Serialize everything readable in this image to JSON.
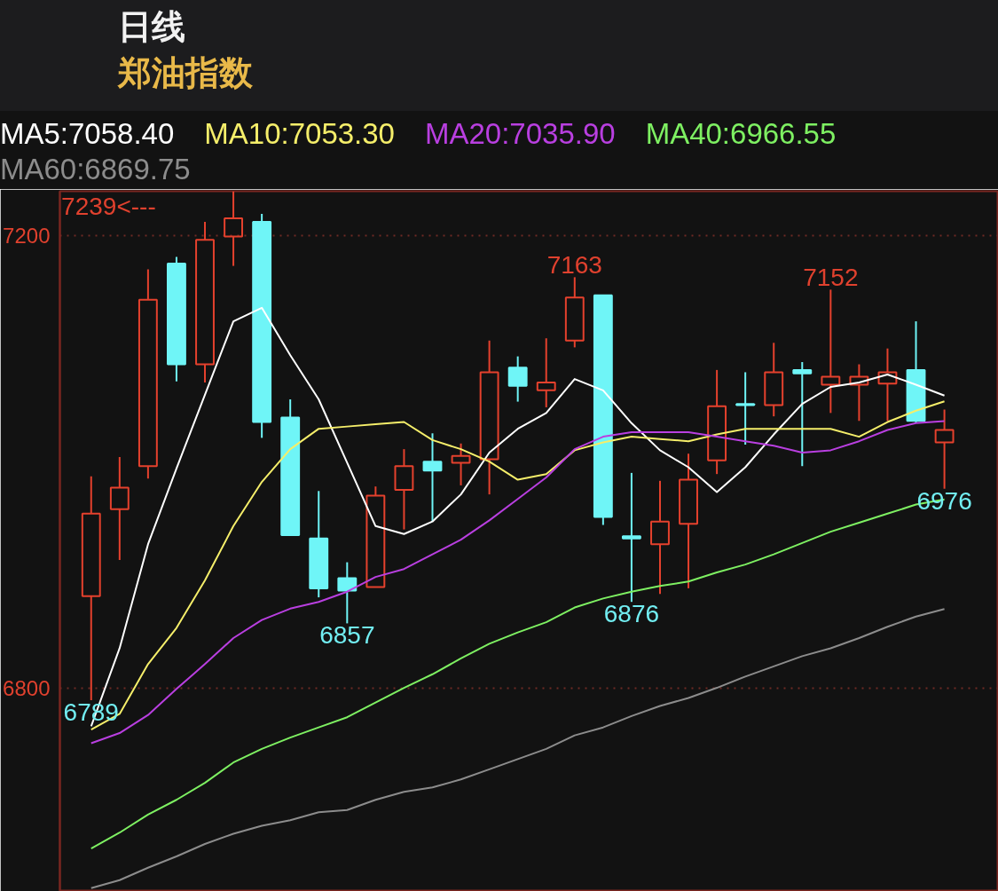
{
  "chart_data": {
    "type": "candlestick",
    "title": "日线",
    "subtitle": "郑油指数",
    "categories": [
      null,
      null,
      null,
      null,
      null,
      null,
      null,
      null,
      null,
      null,
      null,
      null,
      null,
      null,
      null,
      null,
      null,
      null,
      null,
      null,
      null,
      null,
      null,
      null,
      null,
      null,
      null,
      null,
      null,
      null,
      null
    ],
    "ohlc": [
      [
        6881,
        6987,
        6789,
        6954
      ],
      [
        6958,
        7004,
        6913,
        6977
      ],
      [
        6996,
        7170,
        6985,
        7143
      ],
      [
        7175,
        7181,
        7071,
        7086
      ],
      [
        7086,
        7212,
        7070,
        7196
      ],
      [
        7199,
        7239,
        7173,
        7215
      ],
      [
        7212,
        7219,
        7021,
        7035
      ],
      [
        7039,
        7055,
        6935,
        6935
      ],
      [
        6932,
        6974,
        6880,
        6888
      ],
      [
        6897,
        6911,
        6857,
        6886
      ],
      [
        6889,
        6978,
        6889,
        6970
      ],
      [
        6975,
        7011,
        6940,
        6996
      ],
      [
        7000,
        7025,
        6947,
        6992
      ],
      [
        6999,
        7016,
        6979,
        7005
      ],
      [
        7002,
        7107,
        6971,
        7079
      ],
      [
        7083,
        7093,
        7053,
        7067
      ],
      [
        7063,
        7109,
        7048,
        7070
      ],
      [
        7107,
        7163,
        7101,
        7145
      ],
      [
        7147,
        7147,
        6944,
        6951
      ],
      [
        6934,
        6990,
        6876,
        6932
      ],
      [
        6927,
        6983,
        6883,
        6947
      ],
      [
        6945,
        7007,
        6888,
        6984
      ],
      [
        7001,
        7081,
        6989,
        7049
      ],
      [
        7051,
        7079,
        7015,
        7050
      ],
      [
        7050,
        7105,
        7040,
        7079
      ],
      [
        7081,
        7088,
        6996,
        7078
      ],
      [
        7068,
        7152,
        7043,
        7075
      ],
      [
        7068,
        7086,
        7036,
        7075
      ],
      [
        7069,
        7100,
        7036,
        7079
      ],
      [
        7081,
        7124,
        7034,
        7036
      ],
      [
        7017,
        7046,
        6976,
        7028
      ]
    ],
    "colors": [
      "#e5412d",
      "#e5412d",
      "#e5412d",
      "#6ff5f7",
      "#e5412d",
      "#e5412d",
      "#6ff5f7",
      "#6ff5f7",
      "#6ff5f7",
      "#6ff5f7",
      "#e5412d",
      "#e5412d",
      "#6ff5f7",
      "#e5412d",
      "#e5412d",
      "#6ff5f7",
      "#e5412d",
      "#e5412d",
      "#6ff5f7",
      "#6ff5f7",
      "#e5412d",
      "#e5412d",
      "#e5412d",
      "#6ff5f7",
      "#e5412d",
      "#6ff5f7",
      "#e5412d",
      "#e5412d",
      "#e5412d",
      "#6ff5f7",
      "#e5412d"
    ],
    "series": [
      {
        "type": "line",
        "name": "MA5:7058.40",
        "color": "#ffffff",
        "values": [
          6766,
          6835,
          6927,
          6994,
          7059,
          7124,
          7136,
          7094,
          7055,
          6999,
          6943,
          6936,
          6947,
          6971,
          7008,
          7029,
          7043,
          7073,
          7063,
          7034,
          7010,
          6995,
          6973,
          6995,
          7024,
          7051,
          7066,
          7070,
          7077,
          7068,
          7058.4
        ]
      },
      {
        "type": "line",
        "name": "MA10:7053.30",
        "color": "#f5ee6a",
        "values": [
          6763,
          6777,
          6821,
          6853,
          6895,
          6943,
          6982,
          7011,
          7029,
          7031,
          7033,
          7035,
          7019,
          7011,
          7000,
          6984,
          6989,
          7010,
          7017,
          7022,
          7020,
          7018,
          7024,
          7029,
          7029,
          7029,
          7029,
          7022,
          7035,
          7045,
          7053.3
        ]
      },
      {
        "type": "line",
        "name": "MA20:7035.90",
        "color": "#b93fe0",
        "values": [
          6751,
          6760,
          6776,
          6799,
          6821,
          6844,
          6860,
          6870,
          6876,
          6885,
          6898,
          6905,
          6918,
          6931,
          6948,
          6967,
          6986,
          7011,
          7022,
          7026,
          7026,
          7026,
          7022,
          7018,
          7014,
          7008,
          7010,
          7018,
          7028,
          7034,
          7035.9
        ]
      },
      {
        "type": "line",
        "name": "MA40:6966.55",
        "color": "#7ef062",
        "values": [
          6658,
          6672,
          6688,
          6701,
          6716,
          6734,
          6746,
          6756,
          6765,
          6774,
          6787,
          6800,
          6812,
          6826,
          6839,
          6849,
          6858,
          6871,
          6879,
          6885,
          6890,
          6894,
          6902,
          6909,
          6918,
          6928,
          6938,
          6946,
          6954,
          6962,
          6966.55
        ]
      },
      {
        "type": "line",
        "name": "MA60:6869.75",
        "color": "#8c8c8c",
        "values": [
          6623,
          6630,
          6641,
          6651,
          6662,
          6671,
          6678,
          6683,
          6690,
          6692,
          6701,
          6708,
          6712,
          6719,
          6728,
          6737,
          6746,
          6758,
          6765,
          6775,
          6784,
          6791,
          6800,
          6810,
          6819,
          6828,
          6835,
          6844,
          6854,
          6863,
          6869.75
        ]
      }
    ],
    "ylim": [
      6620,
      7239
    ],
    "yticks": [
      7200,
      6800
    ],
    "grid": "y",
    "tick_labels": "y",
    "legend": "top",
    "annotations": [
      "7239<---",
      {
        "text": "7163",
        "y": 7163
      },
      {
        "text": "7152",
        "y": 7152
      },
      {
        "text": "6857",
        "y": 6857
      },
      {
        "text": "6876",
        "y": 6876
      },
      {
        "text": "6976",
        "y": 6976
      },
      {
        "text": "6789",
        "y": 6789
      }
    ]
  }
}
